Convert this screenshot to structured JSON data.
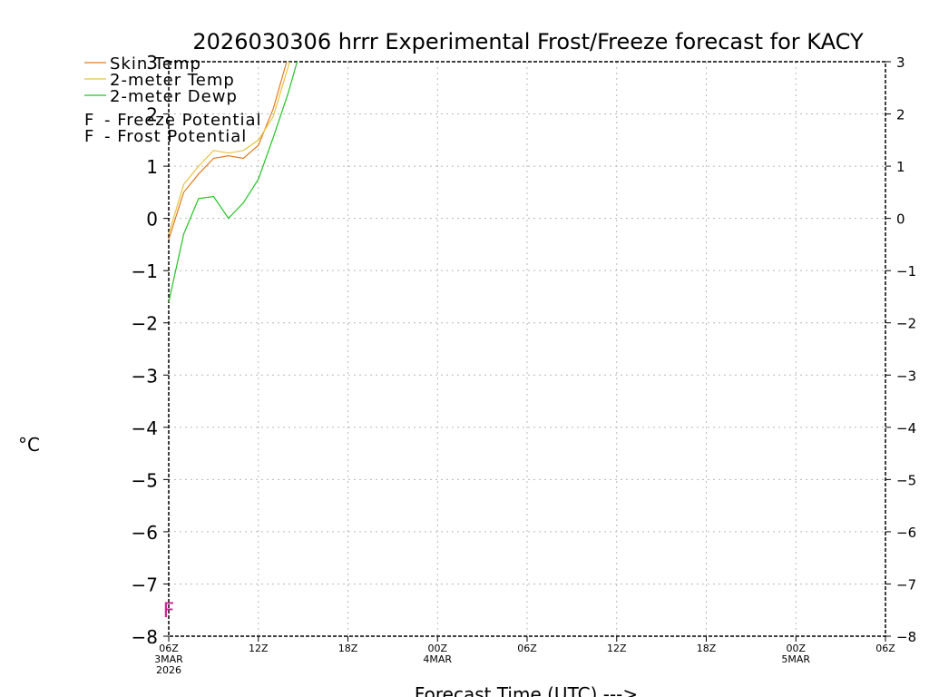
{
  "chart_data": {
    "type": "line",
    "title": "2026030306 hrrr Experimental Frost/Freeze forecast for KACY",
    "xlabel": "Forecast Time (UTC) --->",
    "ylabel": "°C",
    "ylim": [
      -8,
      3
    ],
    "xlim_hours": [
      0,
      48
    ],
    "grid": true,
    "y_ticks": [
      "-8",
      "-7",
      "-6",
      "-5",
      "-4",
      "-3",
      "-2",
      "-1",
      "0",
      "1",
      "2",
      "3"
    ],
    "x_ticks": [
      {
        "hour": 0,
        "label": "06Z",
        "sub1": "3MAR",
        "sub2": "2026"
      },
      {
        "hour": 6,
        "label": "12Z",
        "sub1": "",
        "sub2": ""
      },
      {
        "hour": 12,
        "label": "18Z",
        "sub1": "",
        "sub2": ""
      },
      {
        "hour": 18,
        "label": "00Z",
        "sub1": "4MAR",
        "sub2": ""
      },
      {
        "hour": 24,
        "label": "06Z",
        "sub1": "",
        "sub2": ""
      },
      {
        "hour": 30,
        "label": "12Z",
        "sub1": "",
        "sub2": ""
      },
      {
        "hour": 36,
        "label": "18Z",
        "sub1": "",
        "sub2": ""
      },
      {
        "hour": 42,
        "label": "00Z",
        "sub1": "5MAR",
        "sub2": ""
      },
      {
        "hour": 48,
        "label": "06Z",
        "sub1": "",
        "sub2": ""
      }
    ],
    "series": [
      {
        "name": "Skin Temp",
        "color": "#e07b20",
        "x": [
          0,
          1,
          2,
          3,
          4,
          5,
          6,
          7,
          7.9
        ],
        "values": [
          -0.4,
          0.5,
          0.85,
          1.15,
          1.2,
          1.15,
          1.4,
          2.1,
          3.0
        ]
      },
      {
        "name": "2-meter Temp",
        "color": "#e8c440",
        "x": [
          0,
          1,
          2,
          3,
          4,
          5,
          6,
          7,
          8.1
        ],
        "values": [
          -0.3,
          0.65,
          1.0,
          1.3,
          1.25,
          1.3,
          1.5,
          1.95,
          3.0
        ]
      },
      {
        "name": "2-meter Dewp",
        "color": "#22c322",
        "x": [
          0,
          1,
          2,
          3,
          4,
          5,
          6,
          7,
          8,
          8.6
        ],
        "values": [
          -1.6,
          -0.3,
          0.38,
          0.42,
          0.0,
          0.3,
          0.75,
          1.55,
          2.4,
          3.0
        ]
      }
    ],
    "legend": {
      "placement": "top-left",
      "freeze_label": "- Freeze Potential",
      "frost_label": "- Frost Potential",
      "marker_letter": "F",
      "freeze_color": "#d02090",
      "frost_color": "#3a5fe0"
    },
    "markers": [
      {
        "type": "freeze",
        "hour": 0,
        "value": -7.5,
        "letter": "F"
      }
    ]
  }
}
